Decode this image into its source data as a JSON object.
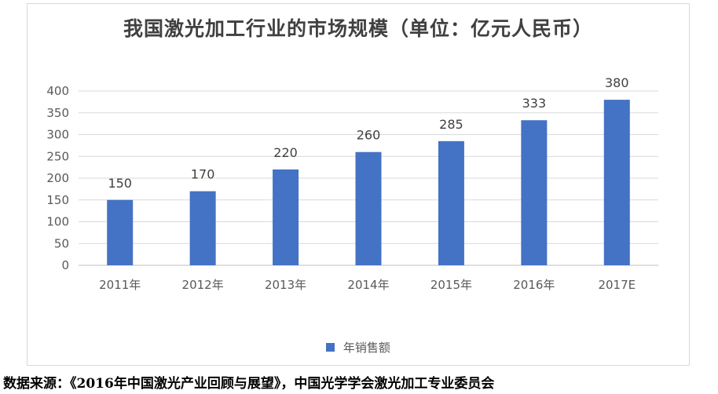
{
  "chart_data": {
    "type": "bar",
    "title": "我国激光加工行业的市场规模（单位：亿元人民币）",
    "categories": [
      "2011年",
      "2012年",
      "2013年",
      "2014年",
      "2015年",
      "2016年",
      "2017E"
    ],
    "series": [
      {
        "name": "年销售额",
        "values": [
          150,
          170,
          220,
          260,
          285,
          333,
          380
        ],
        "color": "#4472c4"
      }
    ],
    "ylim": [
      0,
      400
    ],
    "yticks": [
      0,
      50,
      100,
      150,
      200,
      250,
      300,
      350,
      400
    ],
    "grid": true,
    "legend": "bottom"
  },
  "source_note": "数据来源：《2016年中国激光产业回顾与展望》，中国光学学会激光加工专业委员会"
}
